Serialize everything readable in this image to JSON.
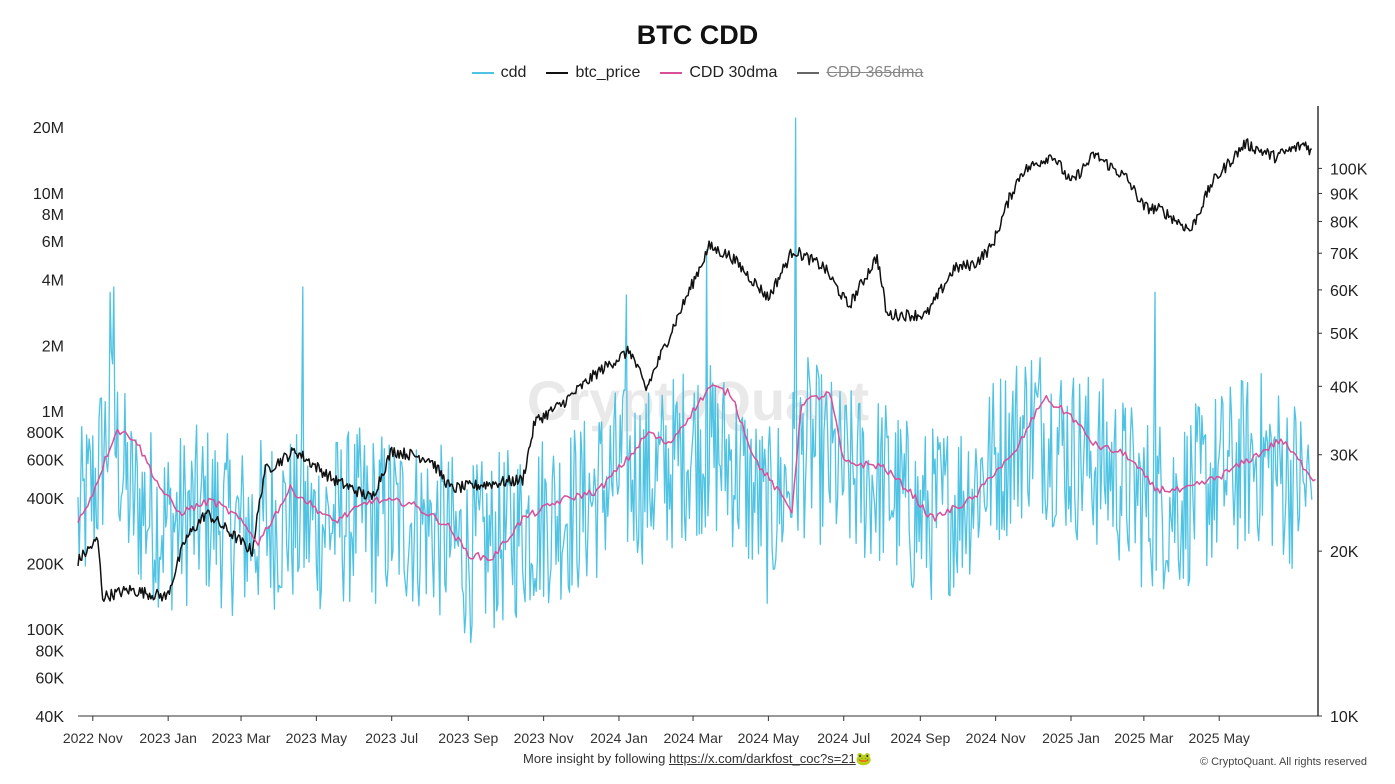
{
  "chart_data": {
    "type": "line",
    "title": "BTC CDD",
    "watermark": "CryptoQuant",
    "x_ticks": [
      "2022 Nov",
      "2023 Jan",
      "2023 Mar",
      "2023 May",
      "2023 Jul",
      "2023 Sep",
      "2023 Nov",
      "2024 Jan",
      "2024 Mar",
      "2024 May",
      "2024 Jul",
      "2024 Sep",
      "2024 Nov",
      "2025 Jan",
      "2025 Mar",
      "2025 May"
    ],
    "x_range": [
      "2022-10-20",
      "2025-07-20"
    ],
    "left_axis": {
      "scale": "log",
      "range": [
        40000,
        25000000
      ],
      "ticks": [
        {
          "v": 40000,
          "l": "40K"
        },
        {
          "v": 60000,
          "l": "60K"
        },
        {
          "v": 80000,
          "l": "80K"
        },
        {
          "v": 100000,
          "l": "100K"
        },
        {
          "v": 200000,
          "l": "200K"
        },
        {
          "v": 400000,
          "l": "400K"
        },
        {
          "v": 600000,
          "l": "600K"
        },
        {
          "v": 800000,
          "l": "800K"
        },
        {
          "v": 1000000,
          "l": "1M"
        },
        {
          "v": 2000000,
          "l": "2M"
        },
        {
          "v": 4000000,
          "l": "4M"
        },
        {
          "v": 6000000,
          "l": "6M"
        },
        {
          "v": 8000000,
          "l": "8M"
        },
        {
          "v": 10000000,
          "l": "10M"
        },
        {
          "v": 20000000,
          "l": "20M"
        }
      ]
    },
    "right_axis": {
      "scale": "log",
      "range": [
        10000,
        130000
      ],
      "ticks": [
        {
          "v": 10000,
          "l": "10K"
        },
        {
          "v": 20000,
          "l": "20K"
        },
        {
          "v": 30000,
          "l": "30K"
        },
        {
          "v": 40000,
          "l": "40K"
        },
        {
          "v": 50000,
          "l": "50K"
        },
        {
          "v": 60000,
          "l": "60K"
        },
        {
          "v": 70000,
          "l": "70K"
        },
        {
          "v": 80000,
          "l": "80K"
        },
        {
          "v": 90000,
          "l": "90K"
        },
        {
          "v": 100000,
          "l": "100K"
        }
      ]
    },
    "legend_position": "top-center",
    "grid": false,
    "series": [
      {
        "name": "cdd",
        "axis": "left",
        "color": "#4fc3e3",
        "visible": true,
        "style": "daily noisy",
        "points": [
          [
            "2022-10-20",
            300000
          ],
          [
            "2022-11-05",
            500000
          ],
          [
            "2022-11-15",
            900000
          ],
          [
            "2022-12-01",
            400000
          ],
          [
            "2023-01-01",
            300000
          ],
          [
            "2023-02-01",
            350000
          ],
          [
            "2023-03-01",
            280000
          ],
          [
            "2023-04-01",
            320000
          ],
          [
            "2023-05-01",
            300000
          ],
          [
            "2023-06-01",
            330000
          ],
          [
            "2023-07-01",
            320000
          ],
          [
            "2023-08-01",
            300000
          ],
          [
            "2023-09-01",
            220000
          ],
          [
            "2023-10-01",
            260000
          ],
          [
            "2023-11-01",
            330000
          ],
          [
            "2023-12-01",
            360000
          ],
          [
            "2024-01-01",
            520000
          ],
          [
            "2024-02-01",
            500000
          ],
          [
            "2024-03-01",
            700000
          ],
          [
            "2024-04-01",
            600000
          ],
          [
            "2024-05-01",
            320000
          ],
          [
            "2024-06-01",
            700000
          ],
          [
            "2024-07-01",
            500000
          ],
          [
            "2024-08-01",
            480000
          ],
          [
            "2024-09-01",
            320000
          ],
          [
            "2024-10-01",
            380000
          ],
          [
            "2024-11-01",
            600000
          ],
          [
            "2024-12-01",
            900000
          ],
          [
            "2025-01-01",
            650000
          ],
          [
            "2025-02-01",
            550000
          ],
          [
            "2025-03-01",
            380000
          ],
          [
            "2025-04-01",
            380000
          ],
          [
            "2025-05-01",
            500000
          ],
          [
            "2025-06-01",
            620000
          ],
          [
            "2025-07-15",
            420000
          ]
        ],
        "spikes": [
          [
            "2022-11-15",
            3500000
          ],
          [
            "2022-11-18",
            3700000
          ],
          [
            "2023-04-20",
            3700000
          ],
          [
            "2024-01-07",
            3400000
          ],
          [
            "2024-03-12",
            5500000
          ],
          [
            "2024-05-23",
            22000000
          ],
          [
            "2025-03-10",
            3500000
          ]
        ]
      },
      {
        "name": "btc_price",
        "axis": "right",
        "color": "#111111",
        "visible": true,
        "points": [
          [
            "2022-10-20",
            19200
          ],
          [
            "2022-11-05",
            21000
          ],
          [
            "2022-11-09",
            16500
          ],
          [
            "2022-12-01",
            17000
          ],
          [
            "2022-12-31",
            16500
          ],
          [
            "2023-01-15",
            21000
          ],
          [
            "2023-02-01",
            23500
          ],
          [
            "2023-03-10",
            20000
          ],
          [
            "2023-03-20",
            28000
          ],
          [
            "2023-04-14",
            30500
          ],
          [
            "2023-05-15",
            27000
          ],
          [
            "2023-06-15",
            25000
          ],
          [
            "2023-07-01",
            30500
          ],
          [
            "2023-08-01",
            29500
          ],
          [
            "2023-08-18",
            26000
          ],
          [
            "2023-09-15",
            26500
          ],
          [
            "2023-10-15",
            27000
          ],
          [
            "2023-10-25",
            34500
          ],
          [
            "2023-11-15",
            37000
          ],
          [
            "2023-12-15",
            42500
          ],
          [
            "2024-01-10",
            46500
          ],
          [
            "2024-01-23",
            39500
          ],
          [
            "2024-02-15",
            52000
          ],
          [
            "2024-03-14",
            72000
          ],
          [
            "2024-04-01",
            69000
          ],
          [
            "2024-05-01",
            58000
          ],
          [
            "2024-05-21",
            71000
          ],
          [
            "2024-06-15",
            66000
          ],
          [
            "2024-07-05",
            56000
          ],
          [
            "2024-07-28",
            69000
          ],
          [
            "2024-08-05",
            54000
          ],
          [
            "2024-09-06",
            54000
          ],
          [
            "2024-09-28",
            65500
          ],
          [
            "2024-10-15",
            67000
          ],
          [
            "2024-10-29",
            72000
          ],
          [
            "2024-11-12",
            88000
          ],
          [
            "2024-11-22",
            98500
          ],
          [
            "2024-12-17",
            106000
          ],
          [
            "2025-01-01",
            94000
          ],
          [
            "2025-01-20",
            106000
          ],
          [
            "2025-02-15",
            96000
          ],
          [
            "2025-03-01",
            85000
          ],
          [
            "2025-03-15",
            84000
          ],
          [
            "2025-04-08",
            77000
          ],
          [
            "2025-04-25",
            94000
          ],
          [
            "2025-05-22",
            111000
          ],
          [
            "2025-06-15",
            105000
          ],
          [
            "2025-07-10",
            111000
          ],
          [
            "2025-07-15",
            107000
          ]
        ]
      },
      {
        "name": "CDD 30dma",
        "axis": "left",
        "color": "#d94f9a",
        "visible": true,
        "points": [
          [
            "2022-10-20",
            310000
          ],
          [
            "2022-11-01",
            420000
          ],
          [
            "2022-11-20",
            820000
          ],
          [
            "2022-12-05",
            750000
          ],
          [
            "2022-12-25",
            450000
          ],
          [
            "2023-01-10",
            340000
          ],
          [
            "2023-02-05",
            390000
          ],
          [
            "2023-02-25",
            330000
          ],
          [
            "2023-03-15",
            250000
          ],
          [
            "2023-04-10",
            440000
          ],
          [
            "2023-05-15",
            310000
          ],
          [
            "2023-06-15",
            390000
          ],
          [
            "2023-07-15",
            380000
          ],
          [
            "2023-08-15",
            300000
          ],
          [
            "2023-09-01",
            220000
          ],
          [
            "2023-09-20",
            210000
          ],
          [
            "2023-10-15",
            320000
          ],
          [
            "2023-11-15",
            390000
          ],
          [
            "2023-12-15",
            430000
          ],
          [
            "2024-01-10",
            620000
          ],
          [
            "2024-01-25",
            800000
          ],
          [
            "2024-02-10",
            700000
          ],
          [
            "2024-03-01",
            1000000
          ],
          [
            "2024-03-15",
            1300000
          ],
          [
            "2024-04-01",
            1200000
          ],
          [
            "2024-04-20",
            600000
          ],
          [
            "2024-05-20",
            350000
          ],
          [
            "2024-05-28",
            1100000
          ],
          [
            "2024-06-20",
            1200000
          ],
          [
            "2024-07-01",
            580000
          ],
          [
            "2024-08-01",
            560000
          ],
          [
            "2024-08-25",
            420000
          ],
          [
            "2024-09-10",
            320000
          ],
          [
            "2024-09-25",
            350000
          ],
          [
            "2024-10-15",
            400000
          ],
          [
            "2024-10-30",
            520000
          ],
          [
            "2024-11-15",
            620000
          ],
          [
            "2024-12-10",
            1150000
          ],
          [
            "2025-01-01",
            950000
          ],
          [
            "2025-01-20",
            700000
          ],
          [
            "2025-02-15",
            630000
          ],
          [
            "2025-03-10",
            440000
          ],
          [
            "2025-04-01",
            430000
          ],
          [
            "2025-05-01",
            500000
          ],
          [
            "2025-06-01",
            630000
          ],
          [
            "2025-06-20",
            740000
          ],
          [
            "2025-07-18",
            480000
          ]
        ]
      },
      {
        "name": "CDD 365dma",
        "axis": "left",
        "color": "#666666",
        "visible": false,
        "points": []
      }
    ]
  },
  "footer": {
    "text": "More insight by following ",
    "link": "https://x.com/darkfost_coc?s=21",
    "emoji": "🐸",
    "copyright": "© CryptoQuant. All rights reserved"
  }
}
